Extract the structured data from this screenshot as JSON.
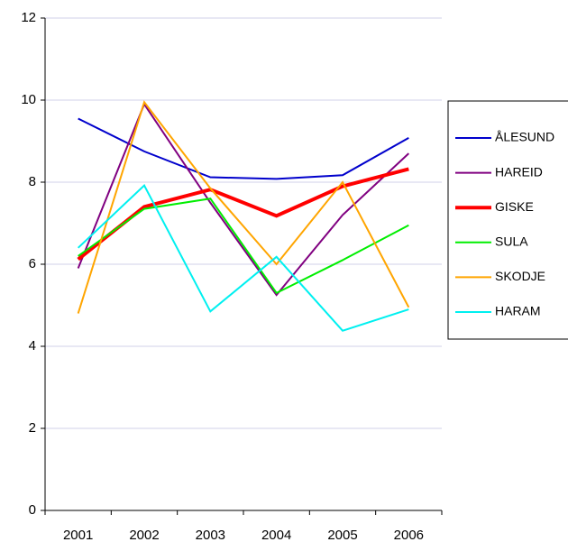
{
  "chart_data": {
    "type": "line",
    "categories": [
      "2001",
      "2002",
      "2003",
      "2004",
      "2005",
      "2006"
    ],
    "series": [
      {
        "name": "ÅLESUND",
        "color": "#0000cc",
        "width": 2,
        "values": [
          9.55,
          8.75,
          8.12,
          8.08,
          8.17,
          9.08
        ]
      },
      {
        "name": "HAREID",
        "color": "#800080",
        "width": 2,
        "values": [
          5.9,
          9.9,
          7.5,
          5.25,
          7.2,
          8.7
        ]
      },
      {
        "name": "GISKE",
        "color": "#ff0000",
        "width": 4,
        "values": [
          6.12,
          7.4,
          7.82,
          7.18,
          7.9,
          8.32
        ]
      },
      {
        "name": "SULA",
        "color": "#00ee00",
        "width": 2,
        "values": [
          6.2,
          7.35,
          7.6,
          5.3,
          6.1,
          6.95
        ]
      },
      {
        "name": "SKODJE",
        "color": "#ffa500",
        "width": 2,
        "values": [
          4.8,
          9.95,
          7.85,
          6.0,
          8.0,
          4.95
        ]
      },
      {
        "name": "HARAM",
        "color": "#00f0f0",
        "width": 2,
        "values": [
          6.4,
          7.92,
          4.85,
          6.18,
          4.38,
          4.9
        ]
      }
    ],
    "ylim": [
      0,
      12
    ],
    "yticks": [
      0,
      2,
      4,
      6,
      8,
      10,
      12
    ],
    "grid": true,
    "legend": "right"
  }
}
